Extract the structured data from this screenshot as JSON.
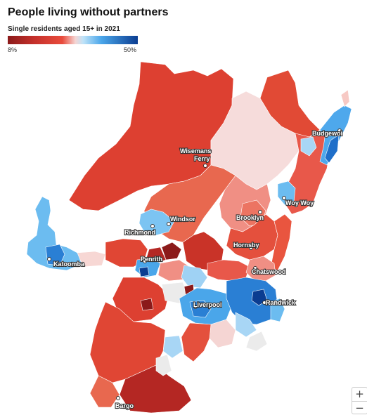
{
  "title": "People living without partners",
  "subtitle": "Single residents aged 15+ in 2021",
  "legend": {
    "min_label": "8%",
    "max_label": "50%",
    "colors": [
      "#8b1a1a",
      "#c4302b",
      "#e94b3c",
      "#f08f84",
      "#f5d5d3",
      "#cfe8f7",
      "#6cbcf0",
      "#2a7fd4",
      "#0b3d91"
    ]
  },
  "places": [
    {
      "name": "Wisemans",
      "id": "wisemans"
    },
    {
      "name": "Ferry",
      "id": "ferry"
    },
    {
      "name": "Budgewoi",
      "id": "budgewoi"
    },
    {
      "name": "Windsor",
      "id": "windsor"
    },
    {
      "name": "Richmond",
      "id": "richmond"
    },
    {
      "name": "Brooklyn",
      "id": "brooklyn"
    },
    {
      "name": "Woy Woy",
      "id": "woy-woy"
    },
    {
      "name": "Hornsby",
      "id": "hornsby"
    },
    {
      "name": "Katoomba",
      "id": "katoomba"
    },
    {
      "name": "Penrith",
      "id": "penrith"
    },
    {
      "name": "Chatswood",
      "id": "chatswood"
    },
    {
      "name": "Liverpool",
      "id": "liverpool"
    },
    {
      "name": "Randwick",
      "id": "randwick"
    },
    {
      "name": "Bargo",
      "id": "bargo"
    }
  ],
  "zoom": {
    "in_label": "+",
    "out_label": "−"
  }
}
